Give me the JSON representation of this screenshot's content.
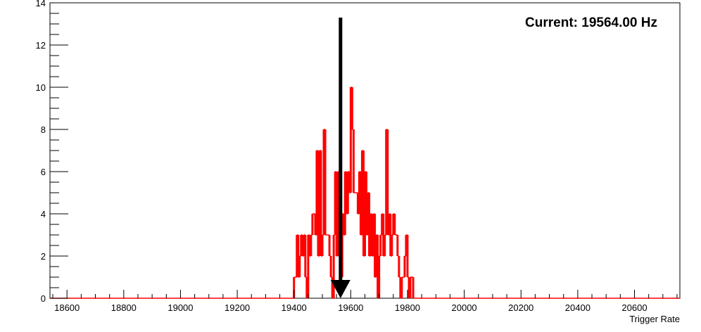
{
  "chart_data": {
    "type": "histogram",
    "title": "",
    "xlabel": "Trigger Rate",
    "ylabel": "",
    "xlim": [
      18540,
      20760
    ],
    "ylim": [
      0,
      14
    ],
    "x_ticks": [
      18600,
      18800,
      19000,
      19200,
      19400,
      19600,
      19800,
      20000,
      20200,
      20400,
      20600
    ],
    "y_ticks": [
      0,
      2,
      4,
      6,
      8,
      10,
      12,
      14
    ],
    "grid": false,
    "legend": "none",
    "series": [
      {
        "color": "#ff0000",
        "bin_width": 5,
        "bins": [
          [
            19400,
            1
          ],
          [
            19405,
            1
          ],
          [
            19410,
            3
          ],
          [
            19415,
            1
          ],
          [
            19420,
            2
          ],
          [
            19425,
            3
          ],
          [
            19430,
            2
          ],
          [
            19435,
            3
          ],
          [
            19440,
            1
          ],
          [
            19445,
            0
          ],
          [
            19450,
            3
          ],
          [
            19455,
            2
          ],
          [
            19460,
            3
          ],
          [
            19465,
            4
          ],
          [
            19470,
            4
          ],
          [
            19475,
            3
          ],
          [
            19480,
            7
          ],
          [
            19485,
            2
          ],
          [
            19490,
            7
          ],
          [
            19495,
            2
          ],
          [
            19500,
            3
          ],
          [
            19505,
            8
          ],
          [
            19510,
            3
          ],
          [
            19515,
            3
          ],
          [
            19520,
            3
          ],
          [
            19525,
            2
          ],
          [
            19530,
            1
          ],
          [
            19535,
            0
          ],
          [
            19540,
            3
          ],
          [
            19545,
            6
          ],
          [
            19550,
            2
          ],
          [
            19555,
            6
          ],
          [
            19560,
            3
          ],
          [
            19565,
            1
          ],
          [
            19570,
            4
          ],
          [
            19575,
            3
          ],
          [
            19580,
            6
          ],
          [
            19585,
            4
          ],
          [
            19590,
            6
          ],
          [
            19595,
            5
          ],
          [
            19600,
            10
          ],
          [
            19605,
            8
          ],
          [
            19610,
            5
          ],
          [
            19615,
            5
          ],
          [
            19620,
            5
          ],
          [
            19625,
            4
          ],
          [
            19630,
            6
          ],
          [
            19635,
            3
          ],
          [
            19640,
            7
          ],
          [
            19645,
            2
          ],
          [
            19650,
            6
          ],
          [
            19655,
            3
          ],
          [
            19660,
            5
          ],
          [
            19665,
            2
          ],
          [
            19670,
            4
          ],
          [
            19675,
            2
          ],
          [
            19680,
            4
          ],
          [
            19685,
            1
          ],
          [
            19690,
            3
          ],
          [
            19695,
            0
          ],
          [
            19700,
            2
          ],
          [
            19705,
            3
          ],
          [
            19710,
            4
          ],
          [
            19715,
            2
          ],
          [
            19720,
            3
          ],
          [
            19725,
            8
          ],
          [
            19730,
            3
          ],
          [
            19735,
            4
          ],
          [
            19740,
            2
          ],
          [
            19745,
            3
          ],
          [
            19750,
            4
          ],
          [
            19755,
            3
          ],
          [
            19760,
            3
          ],
          [
            19765,
            2
          ],
          [
            19770,
            1
          ],
          [
            19775,
            0
          ],
          [
            19780,
            1
          ],
          [
            19785,
            1
          ],
          [
            19790,
            2
          ],
          [
            19795,
            3
          ],
          [
            19800,
            1
          ],
          [
            19805,
            0
          ],
          [
            19810,
            1
          ],
          [
            19815,
            1
          ]
        ]
      }
    ],
    "annotations": [
      {
        "type": "arrow",
        "direction": "down",
        "x": 19564,
        "y_from": 13.3,
        "y_to": 0,
        "color": "#000000"
      },
      {
        "type": "text",
        "text": "Current: 19564.00 Hz",
        "placement": "top-right"
      }
    ]
  }
}
